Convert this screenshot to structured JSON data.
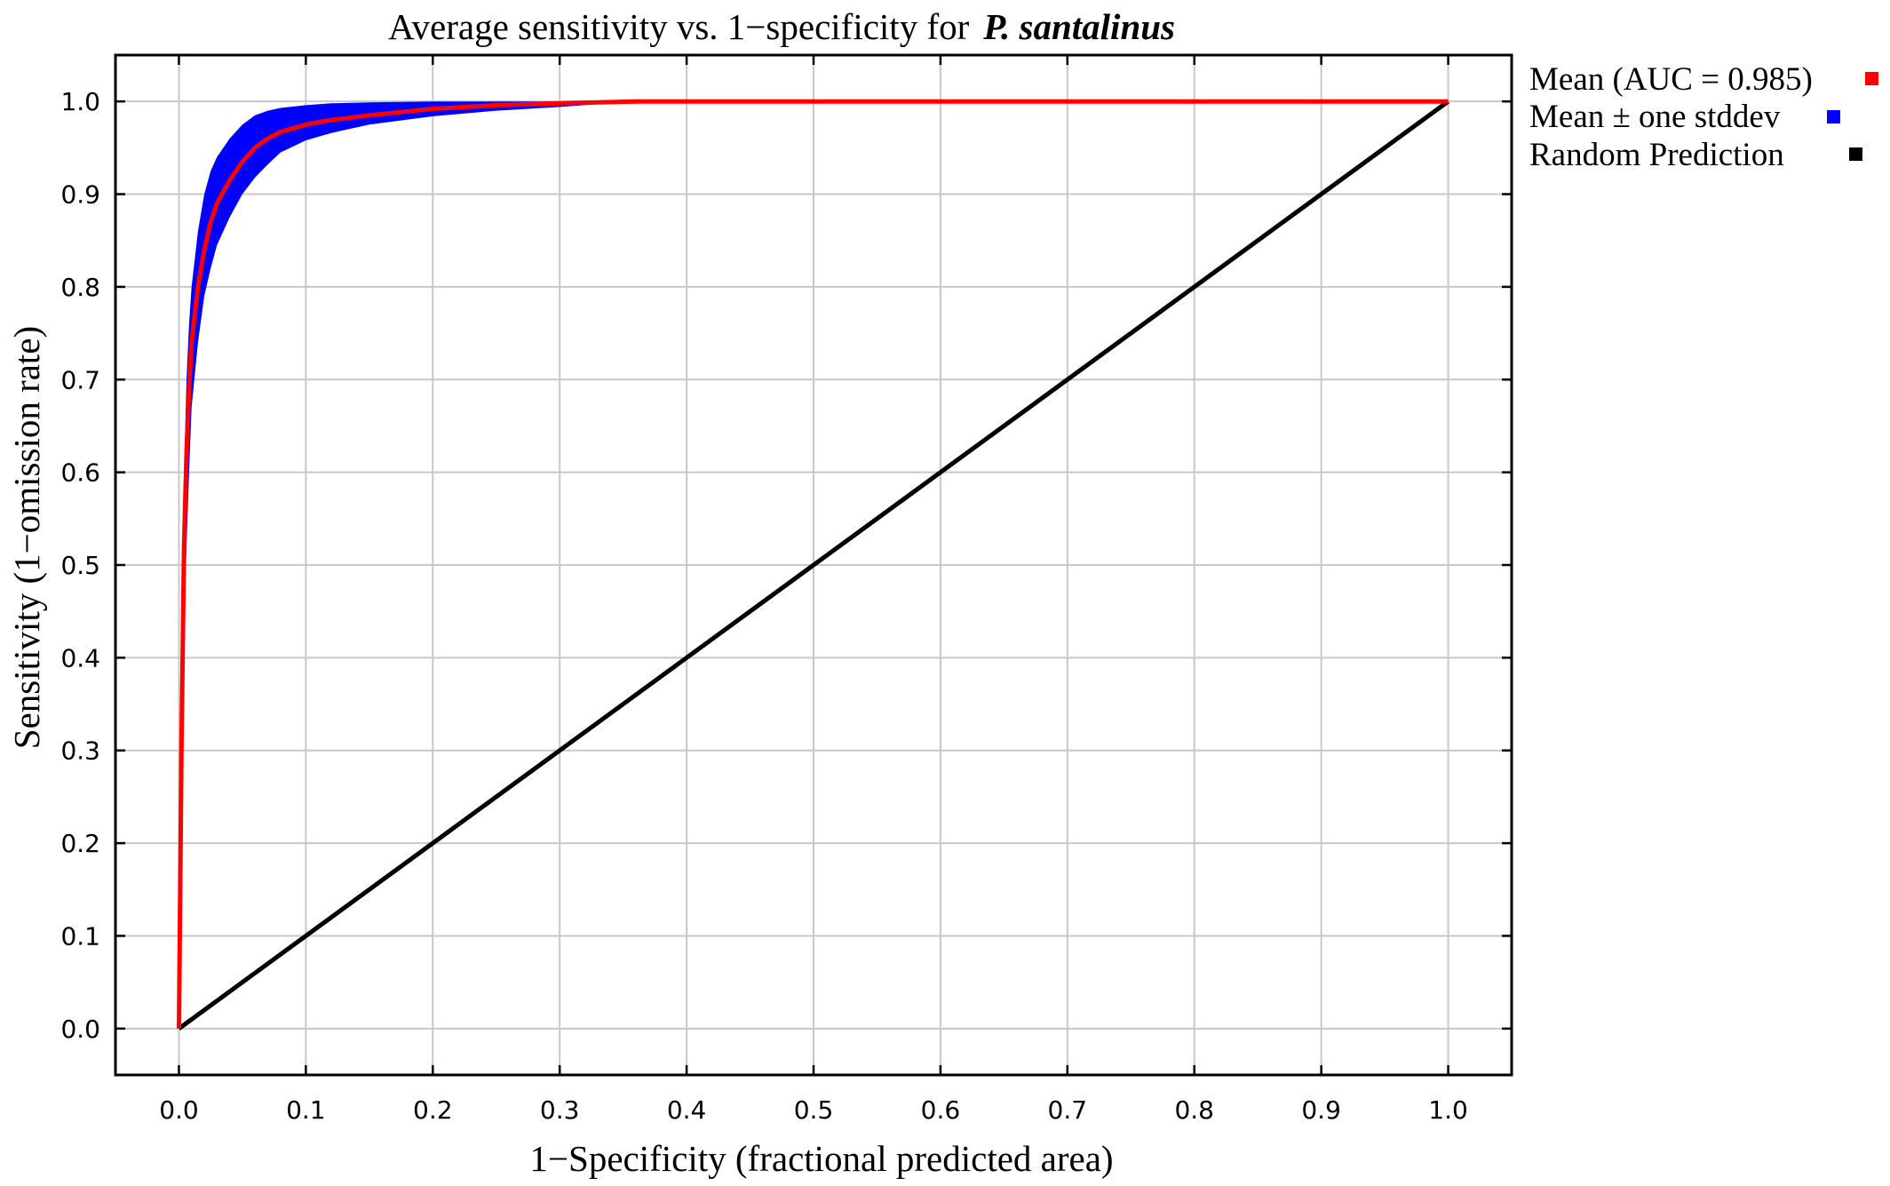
{
  "chart_data": {
    "type": "line",
    "title": "Average sensitivity vs. 1−specificity for",
    "title_species": "P. santalinus",
    "xlabel": "1−Specificity (fractional predicted area)",
    "ylabel": "Sensitivity (1−omission rate)",
    "xlim": [
      -0.05,
      1.05
    ],
    "ylim": [
      -0.05,
      1.05
    ],
    "grid": true,
    "legend_position": "outside-right",
    "x_ticks": [
      "0.0",
      "0.1",
      "0.2",
      "0.3",
      "0.4",
      "0.5",
      "0.6",
      "0.7",
      "0.8",
      "0.9",
      "1.0"
    ],
    "y_ticks": [
      "0.0",
      "0.1",
      "0.2",
      "0.3",
      "0.4",
      "0.5",
      "0.6",
      "0.7",
      "0.8",
      "0.9",
      "1.0"
    ],
    "series": [
      {
        "name": "Mean (AUC = 0.985)",
        "color": "#ff0000",
        "x": [
          0.0,
          0.002,
          0.004,
          0.006,
          0.008,
          0.01,
          0.015,
          0.02,
          0.025,
          0.03,
          0.04,
          0.05,
          0.06,
          0.07,
          0.08,
          0.1,
          0.12,
          0.15,
          0.2,
          0.25,
          0.3,
          0.36,
          0.5,
          0.7,
          1.0
        ],
        "y": [
          0.0,
          0.3,
          0.52,
          0.62,
          0.69,
          0.74,
          0.8,
          0.84,
          0.87,
          0.89,
          0.915,
          0.935,
          0.95,
          0.96,
          0.967,
          0.975,
          0.98,
          0.985,
          0.992,
          0.996,
          0.998,
          1.0,
          1.0,
          1.0,
          1.0
        ]
      },
      {
        "name": "Mean ± one stddev",
        "color": "#0000ff",
        "x": [
          0.0,
          0.002,
          0.004,
          0.006,
          0.008,
          0.01,
          0.015,
          0.02,
          0.025,
          0.03,
          0.04,
          0.05,
          0.06,
          0.07,
          0.08,
          0.1,
          0.12,
          0.15,
          0.2,
          0.25,
          0.3,
          0.36,
          0.5,
          0.7,
          1.0
        ],
        "upper": [
          0.0,
          0.45,
          0.6,
          0.7,
          0.76,
          0.8,
          0.86,
          0.9,
          0.925,
          0.94,
          0.96,
          0.975,
          0.985,
          0.99,
          0.993,
          0.996,
          0.998,
          0.999,
          1.0,
          1.0,
          1.0,
          1.0,
          1.0,
          1.0,
          1.0
        ],
        "lower": [
          0.0,
          0.16,
          0.42,
          0.52,
          0.6,
          0.67,
          0.74,
          0.79,
          0.82,
          0.845,
          0.875,
          0.9,
          0.918,
          0.932,
          0.945,
          0.958,
          0.966,
          0.975,
          0.984,
          0.99,
          0.994,
          1.0,
          1.0,
          1.0,
          1.0
        ]
      },
      {
        "name": "Random Prediction",
        "color": "#000000",
        "x": [
          0.0,
          1.0
        ],
        "y": [
          0.0,
          1.0
        ]
      }
    ]
  }
}
